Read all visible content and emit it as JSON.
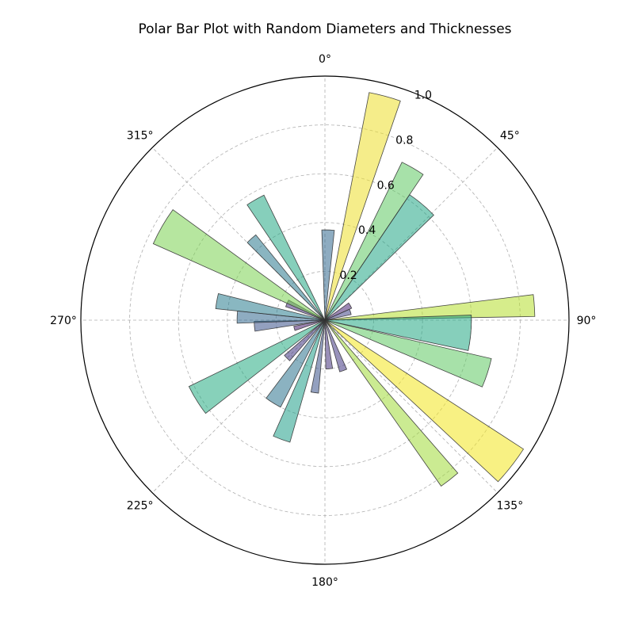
{
  "chart_data": {
    "type": "polar-bar",
    "title": "Polar Bar Plot with Random Diameters and Thicknesses",
    "theta_direction": "clockwise",
    "theta_zero": "top",
    "theta_tick_labels": [
      "0°",
      "45°",
      "90°",
      "135°",
      "180°",
      "225°",
      "270°",
      "315°"
    ],
    "theta_ticks_deg": [
      0,
      45,
      90,
      135,
      180,
      225,
      270,
      315
    ],
    "r_ticks": [
      0.2,
      0.4,
      0.6,
      0.8,
      1.0
    ],
    "r_tick_labels": [
      "0.2",
      "0.4",
      "0.6",
      "0.8",
      "1.0"
    ],
    "r_label_angle_deg": 22.5,
    "rlim": [
      0,
      1.0
    ],
    "grid": true,
    "bar_alpha": 0.55,
    "colormap": "viridis",
    "bars": [
      {
        "theta": 2,
        "r": 0.37,
        "width": 8,
        "color": "#31688e"
      },
      {
        "theta": 15,
        "r": 0.95,
        "width": 8,
        "color": "#ecdf2a"
      },
      {
        "theta": 30,
        "r": 0.72,
        "width": 8,
        "color": "#5ec962"
      },
      {
        "theta": 40,
        "r": 0.62,
        "width": 12,
        "color": "#21a685"
      },
      {
        "theta": 60,
        "r": 0.12,
        "width": 12,
        "color": "#482475"
      },
      {
        "theta": 72,
        "r": 0.11,
        "width": 12,
        "color": "#414487"
      },
      {
        "theta": 86,
        "r": 0.86,
        "width": 6,
        "color": "#b5de2b"
      },
      {
        "theta": 95,
        "r": 0.6,
        "width": 14,
        "color": "#22a884"
      },
      {
        "theta": 108,
        "r": 0.7,
        "width": 10,
        "color": "#5ec962"
      },
      {
        "theta": 128,
        "r": 0.97,
        "width": 10,
        "color": "#f2e51d"
      },
      {
        "theta": 142,
        "r": 0.83,
        "width": 6,
        "color": "#a0da39"
      },
      {
        "theta": 160,
        "r": 0.22,
        "width": 8,
        "color": "#443983"
      },
      {
        "theta": 175,
        "r": 0.2,
        "width": 8,
        "color": "#46337e"
      },
      {
        "theta": 188,
        "r": 0.3,
        "width": 6,
        "color": "#3b528b"
      },
      {
        "theta": 200,
        "r": 0.52,
        "width": 8,
        "color": "#1f9e89"
      },
      {
        "theta": 212,
        "r": 0.4,
        "width": 10,
        "color": "#2c728e"
      },
      {
        "theta": 225,
        "r": 0.22,
        "width": 8,
        "color": "#443983"
      },
      {
        "theta": 238,
        "r": 0.62,
        "width": 12,
        "color": "#25ac82"
      },
      {
        "theta": 255,
        "r": 0.13,
        "width": 8,
        "color": "#481f70"
      },
      {
        "theta": 265,
        "r": 0.29,
        "width": 8,
        "color": "#3b528b"
      },
      {
        "theta": 272,
        "r": 0.36,
        "width": 8,
        "color": "#31688e"
      },
      {
        "theta": 280,
        "r": 0.45,
        "width": 8,
        "color": "#287c8e"
      },
      {
        "theta": 294,
        "r": 0.17,
        "width": 10,
        "color": "#472f7d"
      },
      {
        "theta": 300,
        "r": 0.77,
        "width": 12,
        "color": "#7ad151"
      },
      {
        "theta": 318,
        "r": 0.45,
        "width": 6,
        "color": "#2a788e"
      },
      {
        "theta": 330,
        "r": 0.57,
        "width": 8,
        "color": "#22a884"
      }
    ]
  }
}
